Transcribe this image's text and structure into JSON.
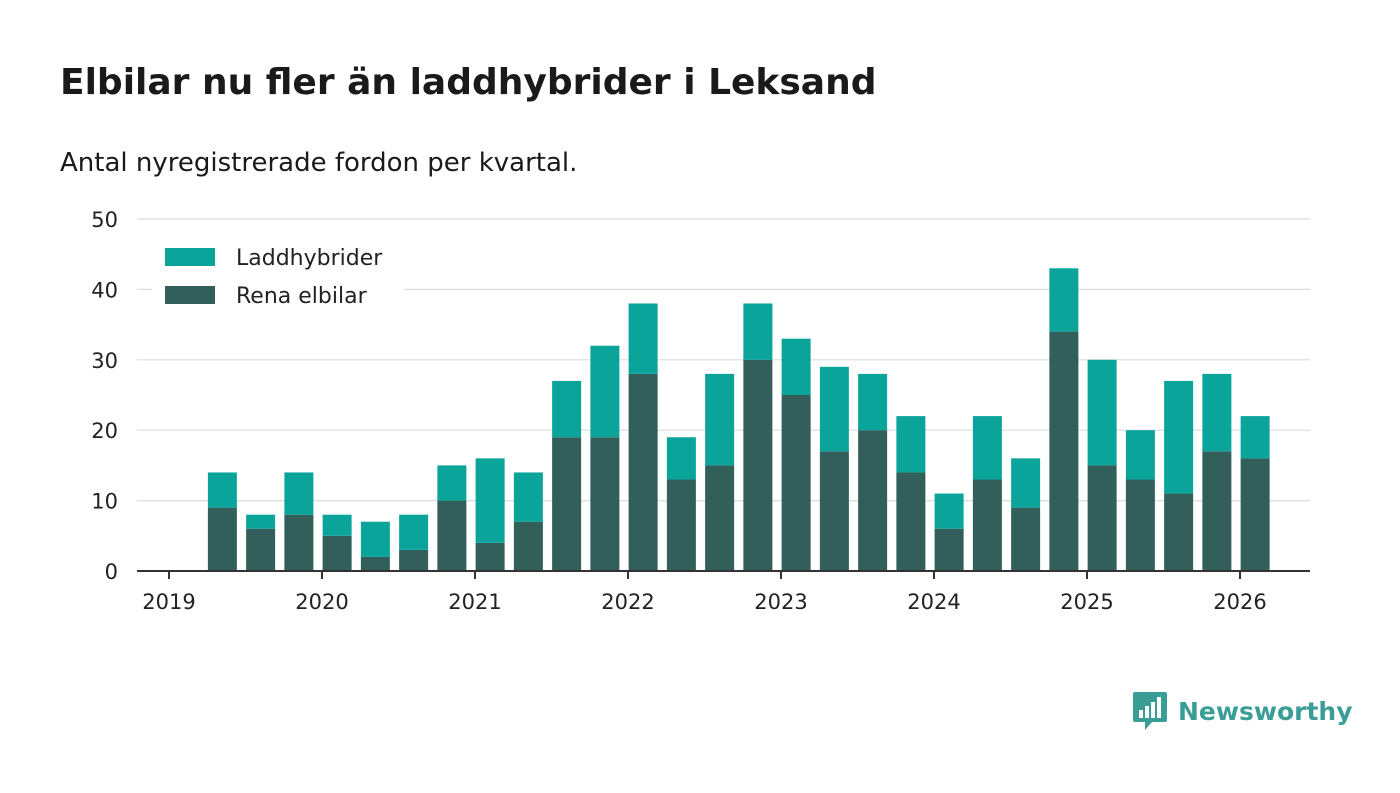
{
  "chart_data": {
    "type": "bar",
    "stacked": true,
    "title": "Elbilar nu fler än laddhybrider i Leksand",
    "subtitle": "Antal nyregistrerade fordon per kvartal.",
    "xlabel": "",
    "ylabel": "",
    "ylim": [
      0,
      50
    ],
    "yticks": [
      0,
      10,
      20,
      30,
      40,
      50
    ],
    "xticks": [
      "2019",
      "2020",
      "2021",
      "2022",
      "2023",
      "2024",
      "2025",
      "2026"
    ],
    "categories": [
      "2019 Q2",
      "2019 Q3",
      "2019 Q4",
      "2020 Q1",
      "2020 Q2",
      "2020 Q3",
      "2020 Q4",
      "2021 Q1",
      "2021 Q2",
      "2021 Q3",
      "2021 Q4",
      "2022 Q1",
      "2022 Q2",
      "2022 Q3",
      "2022 Q4",
      "2023 Q1",
      "2023 Q2",
      "2023 Q3",
      "2023 Q4",
      "2024 Q1",
      "2024 Q2",
      "2024 Q3",
      "2024 Q4",
      "2025 Q1",
      "2025 Q2",
      "2025 Q3",
      "2025 Q4",
      "2026 Q1"
    ],
    "series": [
      {
        "name": "Rena elbilar",
        "color": "#335f5a",
        "values": [
          9,
          6,
          8,
          5,
          2,
          3,
          10,
          4,
          7,
          19,
          19,
          28,
          13,
          15,
          30,
          25,
          17,
          20,
          14,
          6,
          13,
          9,
          34,
          15,
          13,
          11,
          17,
          16
        ]
      },
      {
        "name": "Laddhybrider",
        "color": "#0aa49a",
        "values": [
          5,
          2,
          6,
          3,
          5,
          5,
          5,
          12,
          7,
          8,
          13,
          10,
          6,
          13,
          8,
          8,
          12,
          8,
          8,
          5,
          9,
          7,
          9,
          15,
          7,
          16,
          11,
          6
        ]
      }
    ],
    "legend": [
      "Laddhybrider",
      "Rena elbilar"
    ],
    "legend_position": "top-left"
  },
  "logo": {
    "text": "Newsworthy",
    "color": "#3a9e96"
  }
}
